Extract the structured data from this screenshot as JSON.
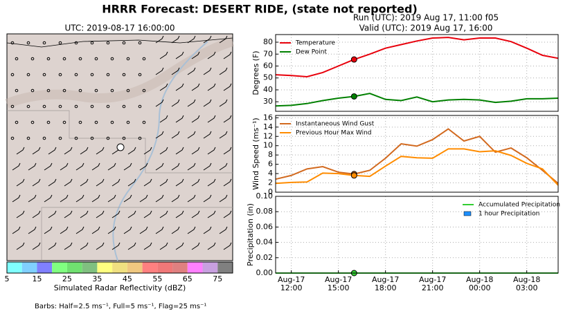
{
  "title": "HRRR Forecast: DESERT RIDE, (state not reported)",
  "run": "Run (UTC): 2019 Aug 17, 11:00 f05",
  "valid": "Valid (UTC): 2019 Aug 17, 16:00",
  "map": {
    "title": "UTC: 2019-08-17 16:00:00",
    "colorbar": {
      "label": "Simulated Radar Reflectivity (dBZ)",
      "bounds": [
        5,
        10,
        15,
        20,
        25,
        30,
        35,
        40,
        45,
        50,
        55,
        60,
        65,
        70,
        75,
        80
      ],
      "colors": [
        "#80ffff",
        "#80d0ff",
        "#8080ff",
        "#80ff80",
        "#70e070",
        "#80c080",
        "#ffff80",
        "#f0e080",
        "#f0c880",
        "#ff8080",
        "#f07878",
        "#e08080",
        "#ff80ff",
        "#c8a0e0",
        "#808080"
      ],
      "ticks": [
        5,
        15,
        25,
        35,
        45,
        55,
        65,
        75
      ]
    },
    "footnote": "Barbs: Half=2.5 ms⁻¹, Full=5 ms⁻¹, Flag=25 ms⁻¹"
  },
  "chart_data": [
    {
      "type": "line",
      "ylabel": "Degrees (F)",
      "legend": "upper left",
      "grid": true,
      "highlight_index": 5,
      "categories": [
        null,
        "Aug-17\n12:00",
        null,
        null,
        "Aug-17\n15:00",
        null,
        null,
        "Aug-17\n18:00",
        null,
        null,
        "Aug-17\n21:00",
        null,
        null,
        "Aug-18\n00:00",
        null,
        null,
        "Aug-18\n03:00",
        null,
        null
      ],
      "ylim": [
        22,
        86.4
      ],
      "yticks": [
        30,
        40,
        50,
        60,
        70,
        80
      ],
      "series": [
        {
          "name": "Temperature",
          "color": "#e8000b",
          "values": [
            52.7,
            52,
            51,
            54.5,
            60,
            65.5,
            70,
            75,
            78,
            81,
            83.5,
            84,
            82,
            83.5,
            83.5,
            80.5,
            75,
            69,
            66.5
          ]
        },
        {
          "name": "Dew Point",
          "color": "#008000",
          "values": [
            26.5,
            27,
            28.5,
            31,
            33,
            34.5,
            37,
            32,
            31,
            34,
            30,
            31.5,
            32,
            31.5,
            29.5,
            30.5,
            32.5,
            32.5,
            33
          ]
        }
      ]
    },
    {
      "type": "line",
      "ylabel": "Wind Speed (ms⁻¹)",
      "legend": "upper left",
      "grid": true,
      "highlight_index": 5,
      "ylim": [
        0,
        16.5
      ],
      "yticks": [
        0,
        2,
        4,
        6,
        8,
        10,
        12,
        14,
        16
      ],
      "series": [
        {
          "name": "Instantaneous Wind Gust",
          "color": "#d2691e",
          "values": [
            2.8,
            3.6,
            5.0,
            5.5,
            4.3,
            3.9,
            4.7,
            7.3,
            10.4,
            9.9,
            11.3,
            13.6,
            11.0,
            12.0,
            8.6,
            9.5,
            7.4,
            4.7,
            1.9
          ]
        },
        {
          "name": "Previous Hour Max Wind",
          "color": "#ff8c00",
          "values": [
            1.9,
            2.1,
            2.2,
            4.1,
            4.0,
            3.6,
            3.4,
            5.6,
            7.7,
            7.4,
            7.3,
            9.3,
            9.3,
            8.7,
            8.9,
            7.9,
            6.2,
            5.0,
            1.5
          ]
        }
      ]
    },
    {
      "type": "line",
      "ylabel": "Precipitation (in)",
      "legend": "upper right",
      "grid": true,
      "highlight_index": 5,
      "ylim": [
        0,
        0.1
      ],
      "yticks": [
        {
          "value": 0,
          "label": "0.00"
        },
        {
          "value": 0.02,
          "label": "0.02"
        },
        {
          "value": 0.04,
          "label": "0.04"
        },
        {
          "value": 0.06,
          "label": "0.06"
        },
        {
          "value": 0.08,
          "label": "0.08"
        },
        {
          "value": 0.1,
          "label": "0.10"
        }
      ],
      "series": [
        {
          "name": "Accumulated Precipitation",
          "color": "#32cd32",
          "values": [
            0,
            0,
            0,
            0,
            0,
            0,
            0,
            0,
            0,
            0,
            0,
            0,
            0,
            0,
            0,
            0,
            0,
            0,
            0
          ]
        },
        {
          "name": "1 hour Precipitation",
          "color": "#1e90ff",
          "kind": "bar",
          "values": [
            0,
            0,
            0,
            0,
            0,
            0,
            0,
            0,
            0,
            0,
            0,
            0,
            0,
            0,
            0,
            0,
            0,
            0,
            0
          ]
        }
      ]
    }
  ]
}
